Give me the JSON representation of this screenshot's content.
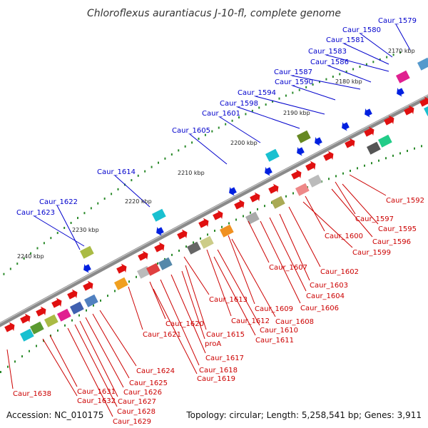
{
  "title": "Chloroflexus aurantiacus J-10-fl, complete genome",
  "accession": "Accession: NC_010175",
  "summary": "Topology: circular; Length: 5,258,541 bp; Genes: 3,911",
  "colors": {
    "forward": "#e01010",
    "reverse": "#0020e0",
    "label_top": "#0000cc",
    "label_bottom": "#cc0000",
    "tick": "#2a8a2a"
  },
  "kbp_marks": [
    "2170 kbp",
    "2180 kbp",
    "2190 kbp",
    "2200 kbp",
    "2210 kbp",
    "2220 kbp",
    "2230 kbp",
    "2240 kbp"
  ],
  "top_labels": [
    "Caur_1579",
    "Caur_1580",
    "Caur_1581",
    "Caur_1583",
    "Caur_1586",
    "Caur_1587",
    "Caur_1590",
    "Caur_1594",
    "Caur_1598",
    "Caur_1601",
    "Caur_1605",
    "Caur_1614",
    "Caur_1622",
    "Caur_1623"
  ],
  "bottom_labels": [
    "Caur_1592",
    "Caur_1597",
    "Caur_1595",
    "Caur_1596",
    "Caur_1600",
    "Caur_1599",
    "Caur_1602",
    "Caur_1607",
    "Caur_1603",
    "Caur_1604",
    "Caur_1606",
    "Caur_1609",
    "Caur_1608",
    "Caur_1613",
    "Caur_1612",
    "Caur_1610",
    "Caur_1611",
    "Caur_1620",
    "Caur_1621",
    "Caur_1615",
    "proA",
    "Caur_1617",
    "Caur_1618",
    "Caur_1619",
    "Caur_1624",
    "Caur_1625",
    "Caur_1626",
    "Caur_1627",
    "Caur_1628",
    "Caur_1629",
    "Caur_1631",
    "Caur_1632",
    "Caur_1638"
  ]
}
